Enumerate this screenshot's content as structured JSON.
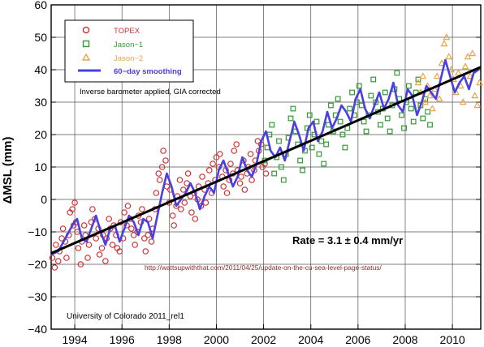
{
  "chart_data": {
    "type": "scatter",
    "title": "",
    "xlabel": "",
    "ylabel": "ΔMSL (mm)",
    "xlim": [
      1993.0,
      2011.2
    ],
    "ylim": [
      -40,
      60
    ],
    "grid": true,
    "xticks": [
      1994,
      1996,
      1998,
      2000,
      2002,
      2004,
      2006,
      2008,
      2010
    ],
    "xtick_labels": [
      "1994",
      "1996",
      "1998",
      "2000",
      "2002",
      "2004",
      "2006",
      "2008",
      "2010"
    ],
    "yticks": [
      -40,
      -30,
      -20,
      -10,
      0,
      10,
      20,
      30,
      40,
      50,
      60
    ],
    "ytick_labels": [
      "−40",
      "−30",
      "−20",
      "−10",
      "0",
      "10",
      "20",
      "30",
      "40",
      "50",
      "60"
    ],
    "legend": {
      "placement": "top-left",
      "entries": [
        {
          "label": "TOPEX",
          "marker": "circle",
          "color": "#cc3333"
        },
        {
          "label": "Jason−1",
          "marker": "square",
          "color": "#339933"
        },
        {
          "label": "Jason−2",
          "marker": "triangle",
          "color": "#e6a64c"
        },
        {
          "label": "60−day smoothing",
          "marker": "line",
          "color": "#4a3fe0"
        }
      ]
    },
    "annotations": {
      "inverse_barometer": "Inverse barometer applied, GIA corrected",
      "rate": "Rate = 3.1 ± 0.4 mm/yr",
      "url": "http://wattsupwiththat.com/2011/04/25/update-on-the-cu-sea-level-page-status/",
      "source": "University of Colorado 2011_rel1"
    },
    "trend_line": {
      "x": [
        1993.0,
        2011.2
      ],
      "y": [
        -16.6,
        40.8
      ],
      "color": "#000000"
    },
    "smoothing": {
      "name": "60−day smoothing",
      "color": "#4a3fe0",
      "x": [
        1993.0,
        1993.3,
        1993.6,
        1993.9,
        1994.1,
        1994.3,
        1994.5,
        1994.7,
        1994.9,
        1995.1,
        1995.3,
        1995.5,
        1995.7,
        1995.9,
        1996.1,
        1996.3,
        1996.5,
        1996.7,
        1996.9,
        1997.1,
        1997.3,
        1997.5,
        1997.7,
        1997.9,
        1998.1,
        1998.3,
        1998.5,
        1998.7,
        1998.9,
        1999.1,
        1999.3,
        1999.5,
        1999.7,
        1999.9,
        2000.1,
        2000.3,
        2000.5,
        2000.7,
        2000.9,
        2001.1,
        2001.3,
        2001.5,
        2001.7,
        2001.9,
        2002.1,
        2002.3,
        2002.5,
        2002.7,
        2002.9,
        2003.1,
        2003.3,
        2003.5,
        2003.7,
        2003.9,
        2004.1,
        2004.3,
        2004.5,
        2004.7,
        2004.9,
        2005.1,
        2005.3,
        2005.5,
        2005.7,
        2005.9,
        2006.1,
        2006.3,
        2006.5,
        2006.7,
        2006.9,
        2007.1,
        2007.3,
        2007.5,
        2007.7,
        2007.9,
        2008.1,
        2008.3,
        2008.5,
        2008.7,
        2008.9,
        2009.1,
        2009.3,
        2009.5,
        2009.7,
        2009.9,
        2010.1,
        2010.3,
        2010.5,
        2010.7,
        2010.9,
        2011.1
      ],
      "y": [
        -17,
        -16,
        -12,
        -8,
        -6,
        -12,
        -13,
        -9,
        -5,
        -10,
        -14,
        -9,
        -8,
        -13,
        -9,
        -5,
        -7,
        -11,
        -6,
        -7,
        -12,
        -5,
        2,
        8,
        4,
        -2,
        0,
        2,
        5,
        2,
        -3,
        1,
        4,
        2,
        9,
        12,
        8,
        4,
        7,
        13,
        9,
        7,
        11,
        18,
        21,
        15,
        13,
        16,
        12,
        18,
        24,
        20,
        15,
        22,
        24,
        18,
        21,
        27,
        22,
        25,
        29,
        27,
        24,
        31,
        34,
        28,
        25,
        29,
        33,
        28,
        31,
        36,
        29,
        27,
        34,
        32,
        26,
        30,
        35,
        33,
        31,
        37,
        43,
        38,
        33,
        36,
        38,
        34,
        39,
        40
      ]
    },
    "series": [
      {
        "name": "TOPEX",
        "marker": "circle",
        "color": "#cc3333",
        "x": [
          1993.05,
          1993.15,
          1993.2,
          1993.3,
          1993.35,
          1993.45,
          1993.5,
          1993.6,
          1993.65,
          1993.75,
          1993.8,
          1993.9,
          1993.95,
          1994.0,
          1994.05,
          1994.1,
          1994.15,
          1994.25,
          1994.3,
          1994.4,
          1994.45,
          1994.55,
          1994.6,
          1994.7,
          1994.75,
          1994.85,
          1994.9,
          1995.0,
          1995.05,
          1995.15,
          1995.2,
          1995.3,
          1995.35,
          1995.45,
          1995.5,
          1995.6,
          1995.65,
          1995.75,
          1995.8,
          1995.9,
          1995.95,
          1996.05,
          1996.1,
          1996.2,
          1996.25,
          1996.35,
          1996.4,
          1996.5,
          1996.55,
          1996.65,
          1996.7,
          1996.8,
          1996.85,
          1996.95,
          1997.0,
          1997.1,
          1997.15,
          1997.25,
          1997.3,
          1997.4,
          1997.45,
          1997.55,
          1997.6,
          1997.7,
          1997.75,
          1997.85,
          1997.9,
          1998.0,
          1998.05,
          1998.15,
          1998.2,
          1998.3,
          1998.35,
          1998.45,
          1998.5,
          1998.6,
          1998.65,
          1998.75,
          1998.8,
          1998.9,
          1998.95,
          1999.05,
          1999.1,
          1999.2,
          1999.25,
          1999.35,
          1999.4,
          1999.5,
          1999.55,
          1999.65,
          1999.7,
          1999.8,
          1999.85,
          1999.95,
          2000.0,
          2000.1,
          2000.15,
          2000.25,
          2000.3,
          2000.4,
          2000.45,
          2000.55,
          2000.6,
          2000.7,
          2000.75,
          2000.85,
          2000.9,
          2001.0,
          2001.05,
          2001.15,
          2001.2,
          2001.3,
          2001.35,
          2001.45,
          2001.5,
          2001.6,
          2001.65,
          2001.75,
          2001.8,
          2001.9,
          2001.95,
          2002.05,
          2002.1
        ],
        "y": [
          -18,
          -21,
          -14,
          -19,
          -16,
          -12,
          -9,
          -13,
          -18,
          -11,
          -4,
          -3,
          -8,
          -1,
          -7,
          -10,
          -15,
          -20,
          -13,
          -8,
          -11,
          -18,
          -14,
          -7,
          -3,
          -6,
          -12,
          -9,
          -17,
          -15,
          -11,
          -19,
          -12,
          -6,
          -9,
          -14,
          -8,
          -11,
          -15,
          -16,
          -7,
          -12,
          -4,
          -8,
          -2,
          -6,
          -9,
          -11,
          -14,
          -10,
          -5,
          -7,
          -3,
          -12,
          -16,
          -11,
          -6,
          -13,
          -9,
          -3,
          2,
          8,
          6,
          10,
          15,
          12,
          4,
          -1,
          3,
          -5,
          -8,
          -2,
          1,
          6,
          -3,
          3,
          -1,
          5,
          8,
          1,
          -4,
          2,
          -6,
          0,
          4,
          -2,
          7,
          3,
          -1,
          5,
          9,
          2,
          11,
          6,
          13,
          10,
          14,
          7,
          4,
          9,
          2,
          6,
          11,
          8,
          15,
          17,
          9,
          5,
          7,
          12,
          3,
          8,
          10,
          14,
          6,
          9,
          12,
          18,
          15,
          17,
          10,
          11,
          8
        ]
      },
      {
        "name": "Jason−1",
        "marker": "square",
        "color": "#339933",
        "x": [
          2002.05,
          2002.15,
          2002.25,
          2002.35,
          2002.45,
          2002.55,
          2002.65,
          2002.75,
          2002.85,
          2002.95,
          2003.05,
          2003.15,
          2003.25,
          2003.35,
          2003.45,
          2003.55,
          2003.65,
          2003.75,
          2003.85,
          2003.95,
          2004.05,
          2004.15,
          2004.25,
          2004.35,
          2004.45,
          2004.55,
          2004.65,
          2004.75,
          2004.85,
          2004.95,
          2005.05,
          2005.15,
          2005.25,
          2005.35,
          2005.45,
          2005.55,
          2005.65,
          2005.75,
          2005.85,
          2005.95,
          2006.05,
          2006.15,
          2006.25,
          2006.35,
          2006.45,
          2006.55,
          2006.65,
          2006.75,
          2006.85,
          2006.95,
          2007.05,
          2007.15,
          2007.25,
          2007.35,
          2007.45,
          2007.55,
          2007.65,
          2007.75,
          2007.85,
          2007.95,
          2008.05,
          2008.15,
          2008.25,
          2008.35,
          2008.45,
          2008.55,
          2008.65,
          2008.75,
          2008.85,
          2008.95,
          2009.05
        ],
        "y": [
          12,
          16,
          20,
          23,
          8,
          13,
          18,
          10,
          6,
          14,
          19,
          25,
          28,
          21,
          17,
          12,
          9,
          15,
          22,
          26,
          16,
          20,
          24,
          14,
          18,
          11,
          17,
          23,
          29,
          21,
          26,
          31,
          24,
          20,
          16,
          22,
          28,
          33,
          26,
          30,
          35,
          29,
          24,
          21,
          26,
          32,
          37,
          30,
          27,
          23,
          28,
          33,
          25,
          21,
          29,
          34,
          39,
          31,
          26,
          22,
          30,
          35,
          28,
          24,
          33,
          37,
          29,
          25,
          31,
          27,
          23
        ]
      },
      {
        "name": "Jason−2",
        "marker": "triangle",
        "color": "#e6a64c",
        "x": [
          2008.55,
          2008.65,
          2008.75,
          2008.85,
          2008.95,
          2009.05,
          2009.15,
          2009.25,
          2009.35,
          2009.45,
          2009.55,
          2009.65,
          2009.75,
          2009.85,
          2009.95,
          2010.05,
          2010.15,
          2010.25,
          2010.35,
          2010.45,
          2010.55,
          2010.65,
          2010.75,
          2010.85,
          2010.95,
          2011.05,
          2011.15
        ],
        "y": [
          36,
          33,
          38,
          30,
          35,
          32,
          28,
          34,
          38,
          31,
          42,
          48,
          50,
          44,
          40,
          37,
          33,
          39,
          35,
          30,
          41,
          44,
          38,
          45,
          32,
          29,
          36
        ]
      }
    ]
  }
}
